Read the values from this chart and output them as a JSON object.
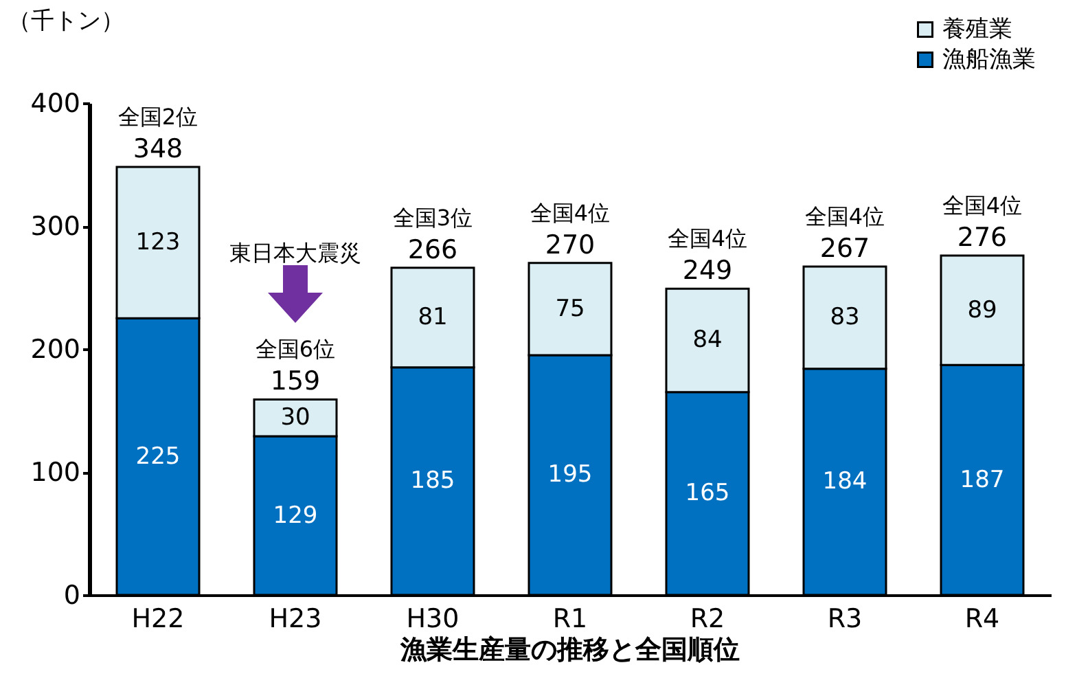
{
  "chart_data": {
    "type": "bar",
    "title": "漁業生産量の推移と全国順位",
    "ylabel": "（千トン）",
    "categories": [
      "H22",
      "H23",
      "H30",
      "R1",
      "R2",
      "R3",
      "R4"
    ],
    "stacked": true,
    "series": [
      {
        "name": "漁船漁業",
        "color": "#0070c0",
        "values": [
          225,
          129,
          185,
          195,
          165,
          184,
          187
        ]
      },
      {
        "name": "養殖業",
        "color": "#dbeef4",
        "values": [
          123,
          30,
          81,
          75,
          84,
          83,
          89
        ]
      }
    ],
    "totals": [
      "348",
      "159",
      "266",
      "270",
      "249",
      "267",
      "276"
    ],
    "data_labels": true,
    "ylim": [
      0,
      400
    ],
    "yticks": [
      0,
      100,
      200,
      300,
      400
    ],
    "grid": false,
    "legend": "top right",
    "annotations": [
      {
        "text": "全国2位",
        "x": "H22",
        "y": 348
      },
      {
        "text": "全国6位",
        "x": "H23",
        "y": 159
      },
      "東日本大震災",
      {
        "text": "全国3位",
        "x": "H30",
        "y": 266
      },
      {
        "text": "全国4位",
        "x": "R1",
        "y": 270
      },
      {
        "text": "全国4位",
        "x": "R2",
        "y": 249
      },
      {
        "text": "全国4位",
        "x": "R3",
        "y": 267
      },
      {
        "text": "全国4位",
        "x": "R4",
        "y": 276
      }
    ]
  }
}
